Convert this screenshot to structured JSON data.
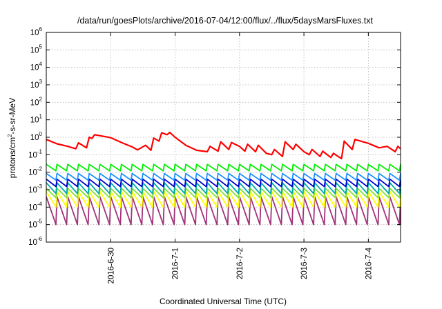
{
  "chart_data": {
    "type": "line",
    "title": "/data/run/goesPlots/archive/2016-07-04/12:00/flux/../flux/5daysMarsFluxes.txt",
    "xlabel": "Coordinated Universal Time (UTC)",
    "ylabel": "protons/cm2-s-sr-MeV",
    "ylabel_parts": {
      "pre": "protons/cm",
      "sup": "2",
      "post": "-s-sr-MeV"
    },
    "yscale": "log",
    "ylim": [
      1e-06,
      1000000.0
    ],
    "y_ticks": [
      {
        "base": "10",
        "exp": "-6",
        "value": 1e-06
      },
      {
        "base": "10",
        "exp": "-5",
        "value": 1e-05
      },
      {
        "base": "10",
        "exp": "-4",
        "value": 0.0001
      },
      {
        "base": "10",
        "exp": "-3",
        "value": 0.001
      },
      {
        "base": "10",
        "exp": "-2",
        "value": 0.01
      },
      {
        "base": "10",
        "exp": "-1",
        "value": 0.1
      },
      {
        "base": "10",
        "exp": "0",
        "value": 1
      },
      {
        "base": "10",
        "exp": "1",
        "value": 10
      },
      {
        "base": "10",
        "exp": "2",
        "value": 100
      },
      {
        "base": "10",
        "exp": "3",
        "value": 1000
      },
      {
        "base": "10",
        "exp": "4",
        "value": 10000
      },
      {
        "base": "10",
        "exp": "5",
        "value": 100000
      },
      {
        "base": "10",
        "exp": "6",
        "value": 1000000
      }
    ],
    "xlim": [
      "2016-06-29T00:00",
      "2016-07-04T12:00"
    ],
    "x_ticks": [
      "2016-6-30",
      "2016-7-1",
      "2016-7-2",
      "2016-7-3",
      "2016-7-4"
    ],
    "grid": true,
    "series": [
      {
        "color": "#ff0000",
        "points": [
          [
            "2016-06-29T00:00",
            0.75
          ],
          [
            "2016-06-29T04:00",
            0.42
          ],
          [
            "2016-06-29T08:00",
            0.3
          ],
          [
            "2016-06-29T11:00",
            0.22
          ],
          [
            "2016-06-29T12:00",
            0.48
          ],
          [
            "2016-06-29T15:00",
            0.25
          ],
          [
            "2016-06-29T16:00",
            1.0
          ],
          [
            "2016-06-29T17:00",
            0.85
          ],
          [
            "2016-06-29T18:00",
            1.4
          ],
          [
            "2016-06-30T00:00",
            0.95
          ],
          [
            "2016-06-30T04:00",
            0.5
          ],
          [
            "2016-06-30T08:00",
            0.28
          ],
          [
            "2016-06-30T10:00",
            0.19
          ],
          [
            "2016-06-30T13:00",
            0.35
          ],
          [
            "2016-06-30T15:00",
            0.18
          ],
          [
            "2016-06-30T16:00",
            0.9
          ],
          [
            "2016-06-30T18:00",
            0.6
          ],
          [
            "2016-06-30T19:00",
            1.8
          ],
          [
            "2016-06-30T21:00",
            1.4
          ],
          [
            "2016-06-30T22:00",
            1.9
          ],
          [
            "2016-07-01T00:00",
            1.0
          ],
          [
            "2016-07-01T04:00",
            0.35
          ],
          [
            "2016-07-01T08:00",
            0.18
          ],
          [
            "2016-07-01T12:00",
            0.15
          ],
          [
            "2016-07-01T13:00",
            0.3
          ],
          [
            "2016-07-01T16:00",
            0.16
          ],
          [
            "2016-07-01T17:00",
            0.55
          ],
          [
            "2016-07-01T20:00",
            0.2
          ],
          [
            "2016-07-01T21:00",
            0.5
          ],
          [
            "2016-07-02T00:00",
            0.3
          ],
          [
            "2016-07-02T02:00",
            0.16
          ],
          [
            "2016-07-02T03:00",
            0.4
          ],
          [
            "2016-07-02T06:00",
            0.15
          ],
          [
            "2016-07-02T07:00",
            0.35
          ],
          [
            "2016-07-02T10:00",
            0.12
          ],
          [
            "2016-07-02T12:00",
            0.1
          ],
          [
            "2016-07-02T13:00",
            0.2
          ],
          [
            "2016-07-02T16:00",
            0.08
          ],
          [
            "2016-07-02T17:00",
            0.55
          ],
          [
            "2016-07-02T20:00",
            0.2
          ],
          [
            "2016-07-02T21:00",
            0.4
          ],
          [
            "2016-07-03T00:00",
            0.15
          ],
          [
            "2016-07-03T02:00",
            0.1
          ],
          [
            "2016-07-03T03:00",
            0.2
          ],
          [
            "2016-07-03T06:00",
            0.08
          ],
          [
            "2016-07-03T07:00",
            0.16
          ],
          [
            "2016-07-03T10:00",
            0.07
          ],
          [
            "2016-07-03T11:00",
            0.12
          ],
          [
            "2016-07-03T14:00",
            0.06
          ],
          [
            "2016-07-03T15:00",
            0.6
          ],
          [
            "2016-07-03T18:00",
            0.2
          ],
          [
            "2016-07-03T19:00",
            0.75
          ],
          [
            "2016-07-04T00:00",
            0.45
          ],
          [
            "2016-07-04T04:00",
            0.25
          ],
          [
            "2016-07-04T07:00",
            0.3
          ],
          [
            "2016-07-04T10:00",
            0.15
          ],
          [
            "2016-07-04T11:00",
            0.3
          ],
          [
            "2016-07-04T12:00",
            0.22
          ]
        ]
      },
      {
        "color": "#00ee00",
        "sawtooth": {
          "period_hours": 4,
          "peak": 0.028,
          "trough": 0.012
        }
      },
      {
        "color": "#1e90ff",
        "sawtooth": {
          "period_hours": 4,
          "peak": 0.0085,
          "trough": 0.0035
        }
      },
      {
        "color": "#0000cd",
        "sawtooth": {
          "period_hours": 4,
          "peak": 0.004,
          "trough": 0.0015
        }
      },
      {
        "color": "#00aaaa",
        "sawtooth": {
          "period_hours": 4,
          "peak": 0.0025,
          "trough": 0.0006
        }
      },
      {
        "color": "#7fe030",
        "sawtooth": {
          "period_hours": 4,
          "peak": 0.0012,
          "trough": 0.00035
        }
      },
      {
        "color": "#ffff00",
        "sawtooth": {
          "period_hours": 4,
          "peak": 0.0008,
          "trough": 0.0001
        }
      },
      {
        "color": "#a0327a",
        "sawtooth": {
          "period_hours": 4,
          "peak": 0.0004,
          "trough": 1e-05
        }
      }
    ]
  }
}
